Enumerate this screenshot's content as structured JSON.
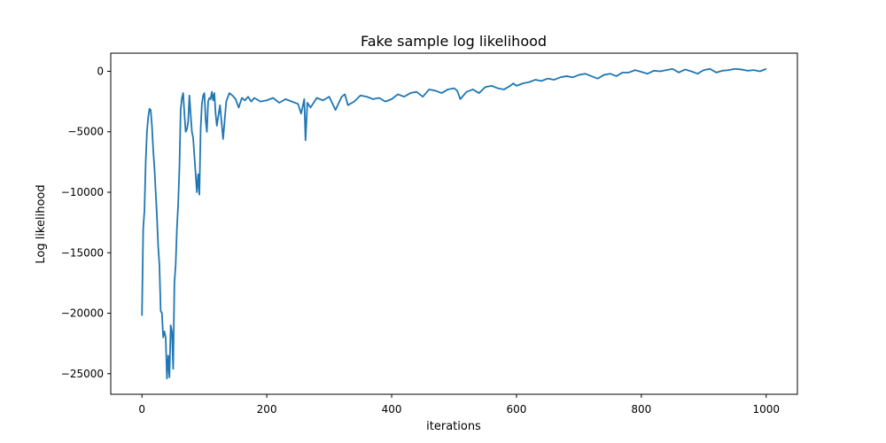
{
  "chart_data": {
    "type": "line",
    "title": "Fake sample log likelihood",
    "xlabel": "iterations",
    "ylabel": "Log likelihood",
    "xlim": [
      -50,
      1050
    ],
    "ylim": [
      -26700,
      1500
    ],
    "xticks": [
      0,
      200,
      400,
      600,
      800,
      1000
    ],
    "yticks": [
      0,
      -5000,
      -10000,
      -15000,
      -20000,
      -25000
    ],
    "xtick_labels": [
      "0",
      "200",
      "400",
      "600",
      "800",
      "1000"
    ],
    "ytick_labels": [
      "0",
      "−5000",
      "−10000",
      "−15000",
      "−20000",
      "−25000"
    ],
    "grid": false,
    "legend": false,
    "color": "#1f77b4",
    "series": [
      {
        "x": [
          0,
          2,
          4,
          6,
          8,
          10,
          12,
          14,
          16,
          18,
          20,
          22,
          24,
          26,
          28,
          30,
          32,
          34,
          36,
          38,
          40,
          42,
          44,
          46,
          48,
          50,
          52,
          54,
          56,
          58,
          60,
          62,
          64,
          66,
          68,
          70,
          72,
          74,
          76,
          78,
          80,
          82,
          84,
          86,
          88,
          90,
          92,
          94,
          96,
          98,
          100,
          102,
          104,
          106,
          108,
          110,
          112,
          114,
          116,
          118,
          120,
          125,
          130,
          135,
          140,
          145,
          150,
          155,
          160,
          165,
          170,
          175,
          180,
          190,
          200,
          210,
          220,
          230,
          240,
          250,
          255,
          260,
          262,
          265,
          270,
          280,
          290,
          300,
          310,
          320,
          325,
          330,
          340,
          350,
          360,
          370,
          380,
          390,
          400,
          410,
          420,
          430,
          440,
          450,
          460,
          470,
          480,
          490,
          500,
          505,
          510,
          520,
          530,
          540,
          550,
          560,
          570,
          580,
          590,
          595,
          600,
          610,
          620,
          630,
          640,
          650,
          660,
          670,
          680,
          690,
          700,
          710,
          720,
          730,
          740,
          750,
          760,
          770,
          780,
          790,
          800,
          810,
          820,
          830,
          840,
          850,
          860,
          870,
          880,
          890,
          900,
          910,
          920,
          930,
          940,
          950,
          960,
          970,
          980,
          990,
          1000
        ],
        "y": [
          -20200,
          -13000,
          -11500,
          -7500,
          -5000,
          -3800,
          -3100,
          -3200,
          -4500,
          -6500,
          -8000,
          -10000,
          -12000,
          -14500,
          -16000,
          -19800,
          -20000,
          -22000,
          -21500,
          -22000,
          -25400,
          -23500,
          -25300,
          -21000,
          -21500,
          -24600,
          -17500,
          -16000,
          -13000,
          -11000,
          -8000,
          -3200,
          -2200,
          -1800,
          -3500,
          -5000,
          -4800,
          -4200,
          -2000,
          -3500,
          -5000,
          -5500,
          -7000,
          -8500,
          -10000,
          -8500,
          -10200,
          -4800,
          -2700,
          -2000,
          -1800,
          -4000,
          -5000,
          -2500,
          -2200,
          -2300,
          -1700,
          -2400,
          -1800,
          -3500,
          -4500,
          -2800,
          -5600,
          -2500,
          -1800,
          -2000,
          -2300,
          -3000,
          -2200,
          -2400,
          -2100,
          -2500,
          -2200,
          -2500,
          -2400,
          -2200,
          -2600,
          -2300,
          -2500,
          -2700,
          -3500,
          -2300,
          -5700,
          -2600,
          -3000,
          -2200,
          -2400,
          -2100,
          -3200,
          -2100,
          -1900,
          -2800,
          -2500,
          -2000,
          -2100,
          -2300,
          -2200,
          -2500,
          -2300,
          -1900,
          -2100,
          -1800,
          -1700,
          -2100,
          -1500,
          -1600,
          -1800,
          -1500,
          -1400,
          -1600,
          -2300,
          -1700,
          -1500,
          -1800,
          -1300,
          -1200,
          -1400,
          -1500,
          -1200,
          -1000,
          -1200,
          -1000,
          -900,
          -700,
          -800,
          -600,
          -700,
          -500,
          -400,
          -500,
          -300,
          -200,
          -400,
          -600,
          -300,
          -200,
          -400,
          -100,
          -100,
          100,
          -50,
          -200,
          50,
          0,
          100,
          200,
          -100,
          150,
          0,
          -200,
          100,
          200,
          -100,
          50,
          100,
          200,
          150,
          50,
          100,
          0,
          200
        ]
      }
    ]
  }
}
